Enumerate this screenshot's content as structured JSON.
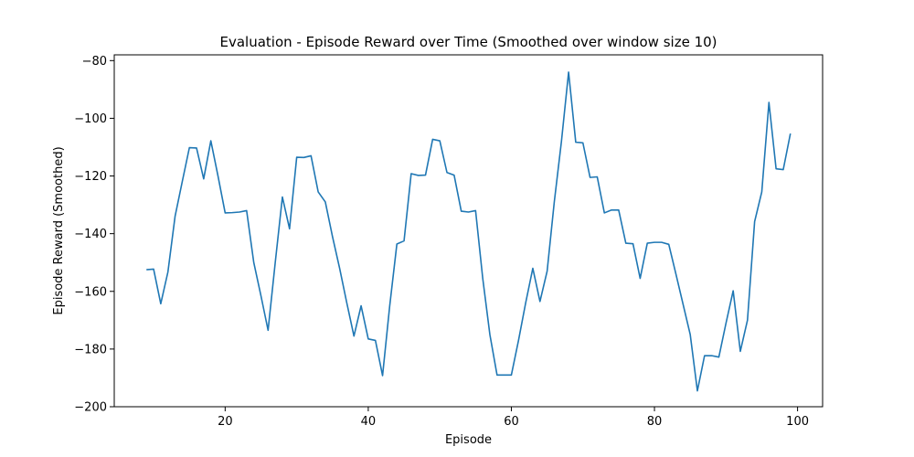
{
  "chart_data": {
    "type": "line",
    "title": "Evaluation - Episode Reward over Time (Smoothed over window size 10)",
    "xlabel": "Episode",
    "ylabel": "Episode Reward (Smoothed)",
    "xlim": [
      4.5,
      103.5
    ],
    "ylim": [
      -200,
      -78
    ],
    "xticks": [
      20,
      40,
      60,
      80,
      100
    ],
    "yticks": [
      -200,
      -180,
      -160,
      -140,
      -120,
      -100,
      -80
    ],
    "grid": false,
    "color": "#1f77b4",
    "series": [
      {
        "x": [
          9,
          10,
          11,
          12,
          13,
          14,
          15,
          16,
          17,
          18,
          19,
          20,
          21,
          22,
          23,
          24,
          25,
          26,
          27,
          28,
          29,
          30,
          31,
          32,
          33,
          34,
          35,
          36,
          37,
          38,
          39,
          40,
          41,
          42,
          43,
          44,
          45,
          46,
          47,
          48,
          49,
          50,
          51,
          52,
          53,
          54,
          55,
          56,
          57,
          58,
          59,
          60,
          61,
          62,
          63,
          64,
          65,
          66,
          67,
          68,
          69,
          70,
          71,
          72,
          73,
          74,
          75,
          76,
          77,
          78,
          79,
          80,
          81,
          82,
          83,
          84,
          85,
          86,
          87,
          88,
          89,
          90,
          91,
          92,
          93,
          94,
          95,
          96,
          97,
          98,
          99
        ],
        "y": [
          -152.5,
          -152.3,
          -164.3,
          -153.3,
          -134.0,
          -122.0,
          -110.2,
          -110.3,
          -121.0,
          -107.8,
          -120.0,
          -132.8,
          -132.7,
          -132.5,
          -132.0,
          -150.0,
          -161.5,
          -173.5,
          -150.0,
          -127.3,
          -138.3,
          -113.5,
          -113.6,
          -113.0,
          -125.5,
          -129.0,
          -141.0,
          -152.0,
          -164.0,
          -175.5,
          -165.0,
          -176.5,
          -177.0,
          -189.2,
          -165.0,
          -143.6,
          -142.5,
          -119.2,
          -119.8,
          -119.7,
          -107.3,
          -107.8,
          -118.8,
          -119.7,
          -132.2,
          -132.5,
          -132.0,
          -155.5,
          -175.0,
          -189.0,
          -189.0,
          -189.0,
          -177.0,
          -164.0,
          -152.0,
          -163.5,
          -153.0,
          -129.0,
          -108.0,
          -84.0,
          -108.3,
          -108.5,
          -120.5,
          -120.3,
          -132.8,
          -131.8,
          -131.8,
          -143.3,
          -143.5,
          -155.5,
          -143.3,
          -143.0,
          -143.0,
          -143.7,
          -154.0,
          -164.5,
          -175.0,
          -194.5,
          -182.3,
          -182.3,
          -182.8,
          -171.0,
          -159.8,
          -180.8,
          -170.0,
          -135.8,
          -125.5,
          -94.5,
          -117.5,
          -117.8,
          -105.3
        ]
      }
    ]
  }
}
